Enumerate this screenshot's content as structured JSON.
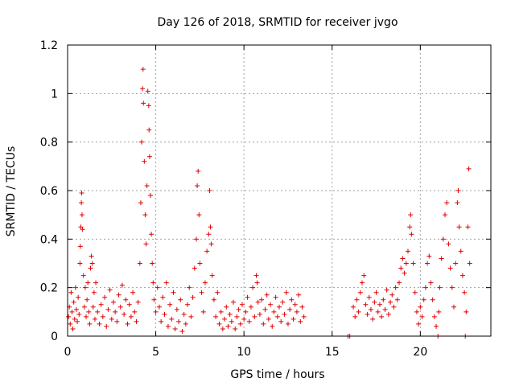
{
  "chart_data": {
    "type": "scatter",
    "title": "Day 126 of 2018, SRMTID for receiver jvgo",
    "xlabel": "GPS time / hours",
    "ylabel": "SRMTID / TECUs",
    "xlim": [
      0,
      24
    ],
    "ylim": [
      0,
      1.2
    ],
    "xticks": [
      0,
      5,
      10,
      15,
      20
    ],
    "xtick_labels": [
      "0",
      "5",
      "10",
      "15",
      "20"
    ],
    "yticks": [
      0,
      0.2,
      0.4,
      0.6,
      0.8,
      1.0,
      1.2
    ],
    "ytick_labels": [
      "0",
      "0.2",
      "0.4",
      "0.6",
      "0.8",
      "1",
      "1.2"
    ],
    "grid": true,
    "marker": "+",
    "marker_color": "#e00000",
    "series": [
      {
        "name": "SRMTID",
        "points": [
          [
            0.05,
            0.08
          ],
          [
            0.1,
            0.12
          ],
          [
            0.15,
            0.05
          ],
          [
            0.2,
            0.18
          ],
          [
            0.25,
            0.1
          ],
          [
            0.3,
            0.03
          ],
          [
            0.35,
            0.14
          ],
          [
            0.4,
            0.07
          ],
          [
            0.45,
            0.2
          ],
          [
            0.5,
            0.11
          ],
          [
            0.55,
            0.06
          ],
          [
            0.6,
            0.16
          ],
          [
            0.65,
            0.09
          ],
          [
            0.7,
            0.3
          ],
          [
            0.72,
            0.37
          ],
          [
            0.75,
            0.45
          ],
          [
            0.78,
            0.55
          ],
          [
            0.8,
            0.59
          ],
          [
            0.82,
            0.5
          ],
          [
            0.85,
            0.44
          ],
          [
            0.9,
            0.25
          ],
          [
            0.95,
            0.12
          ],
          [
            1.0,
            0.2
          ],
          [
            1.05,
            0.08
          ],
          [
            1.1,
            0.15
          ],
          [
            1.15,
            0.22
          ],
          [
            1.2,
            0.1
          ],
          [
            1.25,
            0.05
          ],
          [
            1.3,
            0.28
          ],
          [
            1.35,
            0.33
          ],
          [
            1.4,
            0.3
          ],
          [
            1.45,
            0.12
          ],
          [
            1.5,
            0.18
          ],
          [
            1.55,
            0.07
          ],
          [
            1.6,
            0.22
          ],
          [
            1.7,
            0.1
          ],
          [
            1.8,
            0.05
          ],
          [
            1.9,
            0.13
          ],
          [
            2.0,
            0.08
          ],
          [
            2.1,
            0.16
          ],
          [
            2.2,
            0.04
          ],
          [
            2.3,
            0.11
          ],
          [
            2.4,
            0.19
          ],
          [
            2.5,
            0.07
          ],
          [
            2.6,
            0.14
          ],
          [
            2.7,
            0.1
          ],
          [
            2.8,
            0.06
          ],
          [
            2.9,
            0.17
          ],
          [
            3.0,
            0.12
          ],
          [
            3.1,
            0.21
          ],
          [
            3.2,
            0.09
          ],
          [
            3.3,
            0.15
          ],
          [
            3.4,
            0.05
          ],
          [
            3.5,
            0.13
          ],
          [
            3.6,
            0.08
          ],
          [
            3.7,
            0.18
          ],
          [
            3.8,
            0.1
          ],
          [
            3.9,
            0.06
          ],
          [
            4.0,
            0.14
          ],
          [
            4.1,
            0.3
          ],
          [
            4.15,
            0.55
          ],
          [
            4.2,
            0.8
          ],
          [
            4.25,
            1.02
          ],
          [
            4.28,
            1.1
          ],
          [
            4.3,
            0.96
          ],
          [
            4.35,
            0.72
          ],
          [
            4.4,
            0.5
          ],
          [
            4.45,
            0.38
          ],
          [
            4.5,
            0.62
          ],
          [
            4.55,
            1.01
          ],
          [
            4.6,
            0.95
          ],
          [
            4.62,
            0.85
          ],
          [
            4.65,
            0.74
          ],
          [
            4.7,
            0.58
          ],
          [
            4.75,
            0.42
          ],
          [
            4.8,
            0.3
          ],
          [
            4.85,
            0.22
          ],
          [
            4.9,
            0.15
          ],
          [
            5.0,
            0.1
          ],
          [
            5.1,
            0.2
          ],
          [
            5.2,
            0.12
          ],
          [
            5.3,
            0.06
          ],
          [
            5.4,
            0.16
          ],
          [
            5.5,
            0.09
          ],
          [
            5.6,
            0.22
          ],
          [
            5.7,
            0.04
          ],
          [
            5.8,
            0.13
          ],
          [
            5.9,
            0.07
          ],
          [
            6.0,
            0.18
          ],
          [
            6.1,
            0.03
          ],
          [
            6.2,
            0.11
          ],
          [
            6.3,
            0.06
          ],
          [
            6.4,
            0.15
          ],
          [
            6.5,
            0.02
          ],
          [
            6.6,
            0.09
          ],
          [
            6.7,
            0.05
          ],
          [
            6.8,
            0.13
          ],
          [
            6.9,
            0.2
          ],
          [
            7.0,
            0.08
          ],
          [
            7.1,
            0.16
          ],
          [
            7.2,
            0.28
          ],
          [
            7.3,
            0.4
          ],
          [
            7.35,
            0.62
          ],
          [
            7.4,
            0.68
          ],
          [
            7.45,
            0.5
          ],
          [
            7.5,
            0.3
          ],
          [
            7.6,
            0.18
          ],
          [
            7.7,
            0.1
          ],
          [
            7.8,
            0.22
          ],
          [
            7.9,
            0.35
          ],
          [
            8.0,
            0.42
          ],
          [
            8.05,
            0.6
          ],
          [
            8.1,
            0.45
          ],
          [
            8.15,
            0.38
          ],
          [
            8.2,
            0.25
          ],
          [
            8.3,
            0.15
          ],
          [
            8.4,
            0.08
          ],
          [
            8.5,
            0.18
          ],
          [
            8.6,
            0.05
          ],
          [
            8.7,
            0.1
          ],
          [
            8.8,
            0.03
          ],
          [
            8.9,
            0.07
          ],
          [
            9.0,
            0.12
          ],
          [
            9.1,
            0.04
          ],
          [
            9.2,
            0.09
          ],
          [
            9.3,
            0.06
          ],
          [
            9.4,
            0.14
          ],
          [
            9.5,
            0.03
          ],
          [
            9.6,
            0.08
          ],
          [
            9.7,
            0.11
          ],
          [
            9.8,
            0.05
          ],
          [
            9.9,
            0.13
          ],
          [
            10.0,
            0.07
          ],
          [
            10.1,
            0.1
          ],
          [
            10.2,
            0.16
          ],
          [
            10.3,
            0.06
          ],
          [
            10.4,
            0.12
          ],
          [
            10.5,
            0.2
          ],
          [
            10.6,
            0.08
          ],
          [
            10.7,
            0.25
          ],
          [
            10.75,
            0.22
          ],
          [
            10.8,
            0.14
          ],
          [
            10.9,
            0.09
          ],
          [
            11.0,
            0.15
          ],
          [
            11.1,
            0.05
          ],
          [
            11.2,
            0.11
          ],
          [
            11.3,
            0.17
          ],
          [
            11.4,
            0.07
          ],
          [
            11.5,
            0.13
          ],
          [
            11.6,
            0.04
          ],
          [
            11.7,
            0.1
          ],
          [
            11.8,
            0.16
          ],
          [
            11.9,
            0.08
          ],
          [
            12.0,
            0.12
          ],
          [
            12.1,
            0.06
          ],
          [
            12.2,
            0.14
          ],
          [
            12.3,
            0.09
          ],
          [
            12.4,
            0.18
          ],
          [
            12.5,
            0.05
          ],
          [
            12.6,
            0.11
          ],
          [
            12.7,
            0.15
          ],
          [
            12.8,
            0.07
          ],
          [
            12.9,
            0.13
          ],
          [
            13.0,
            0.1
          ],
          [
            13.1,
            0.17
          ],
          [
            13.2,
            0.06
          ],
          [
            13.3,
            0.12
          ],
          [
            13.4,
            0.08
          ],
          [
            15.9,
            0.0
          ],
          [
            16.0,
            0.0
          ],
          [
            16.2,
            0.12
          ],
          [
            16.3,
            0.08
          ],
          [
            16.4,
            0.15
          ],
          [
            16.5,
            0.1
          ],
          [
            16.6,
            0.18
          ],
          [
            16.7,
            0.22
          ],
          [
            16.8,
            0.25
          ],
          [
            16.9,
            0.13
          ],
          [
            17.0,
            0.09
          ],
          [
            17.1,
            0.16
          ],
          [
            17.2,
            0.11
          ],
          [
            17.3,
            0.07
          ],
          [
            17.4,
            0.14
          ],
          [
            17.5,
            0.18
          ],
          [
            17.6,
            0.1
          ],
          [
            17.7,
            0.13
          ],
          [
            17.8,
            0.08
          ],
          [
            17.9,
            0.15
          ],
          [
            18.0,
            0.11
          ],
          [
            18.1,
            0.19
          ],
          [
            18.2,
            0.09
          ],
          [
            18.3,
            0.14
          ],
          [
            18.4,
            0.17
          ],
          [
            18.5,
            0.12
          ],
          [
            18.6,
            0.2
          ],
          [
            18.7,
            0.15
          ],
          [
            18.8,
            0.22
          ],
          [
            18.9,
            0.28
          ],
          [
            19.0,
            0.32
          ],
          [
            19.1,
            0.26
          ],
          [
            19.2,
            0.3
          ],
          [
            19.3,
            0.35
          ],
          [
            19.4,
            0.45
          ],
          [
            19.45,
            0.5
          ],
          [
            19.5,
            0.42
          ],
          [
            19.6,
            0.3
          ],
          [
            19.7,
            0.18
          ],
          [
            19.8,
            0.1
          ],
          [
            19.9,
            0.05
          ],
          [
            20.0,
            0.12
          ],
          [
            20.1,
            0.08
          ],
          [
            20.2,
            0.15
          ],
          [
            20.3,
            0.2
          ],
          [
            20.4,
            0.3
          ],
          [
            20.5,
            0.33
          ],
          [
            20.6,
            0.22
          ],
          [
            20.7,
            0.15
          ],
          [
            20.8,
            0.08
          ],
          [
            20.9,
            0.04
          ],
          [
            21.0,
            0.0
          ],
          [
            21.05,
            0.1
          ],
          [
            21.1,
            0.2
          ],
          [
            21.2,
            0.32
          ],
          [
            21.3,
            0.4
          ],
          [
            21.4,
            0.5
          ],
          [
            21.5,
            0.55
          ],
          [
            21.6,
            0.38
          ],
          [
            21.7,
            0.28
          ],
          [
            21.8,
            0.2
          ],
          [
            21.9,
            0.12
          ],
          [
            22.0,
            0.3
          ],
          [
            22.1,
            0.55
          ],
          [
            22.15,
            0.6
          ],
          [
            22.2,
            0.45
          ],
          [
            22.3,
            0.35
          ],
          [
            22.4,
            0.25
          ],
          [
            22.5,
            0.18
          ],
          [
            22.55,
            0.0
          ],
          [
            22.6,
            0.1
          ],
          [
            22.7,
            0.45
          ],
          [
            22.75,
            0.69
          ],
          [
            22.8,
            0.3
          ]
        ]
      }
    ]
  }
}
